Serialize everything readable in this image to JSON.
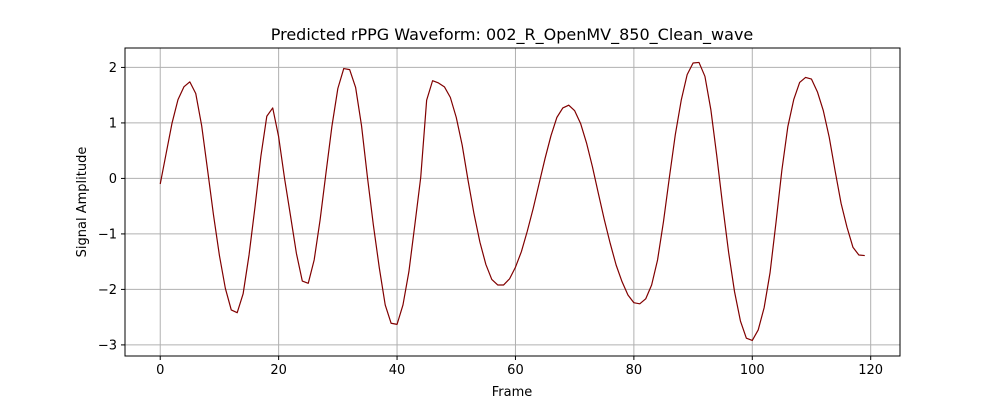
{
  "chart_data": {
    "type": "line",
    "title": "Predicted rPPG Waveform: 002_R_OpenMV_850_Clean_wave",
    "xlabel": "Frame",
    "ylabel": "Signal Amplitude",
    "xlim": [
      -5.95,
      124.95
    ],
    "ylim": [
      -3.2,
      2.35
    ],
    "xticks": [
      0,
      20,
      40,
      60,
      80,
      100,
      120
    ],
    "yticks": [
      -3,
      -2,
      -1,
      0,
      1,
      2
    ],
    "grid": true,
    "line_color": "#800000",
    "series": [
      {
        "values": [
          -0.1,
          0.45,
          1.0,
          1.42,
          1.65,
          1.74,
          1.53,
          0.95,
          0.15,
          -0.66,
          -1.39,
          -1.98,
          -2.37,
          -2.42,
          -2.08,
          -1.38,
          -0.52,
          0.4,
          1.12,
          1.27,
          0.75,
          0.0,
          -0.67,
          -1.35,
          -1.85,
          -1.89,
          -1.47,
          -0.75,
          0.1,
          0.94,
          1.62,
          1.98,
          1.96,
          1.64,
          0.95,
          0.02,
          -0.84,
          -1.61,
          -2.28,
          -2.61,
          -2.63,
          -2.28,
          -1.68,
          -0.84,
          0.02,
          1.41,
          1.76,
          1.72,
          1.65,
          1.46,
          1.1,
          0.6,
          -0.04,
          -0.64,
          -1.15,
          -1.55,
          -1.82,
          -1.92,
          -1.92,
          -1.81,
          -1.6,
          -1.32,
          -0.95,
          -0.54,
          -0.09,
          0.36,
          0.77,
          1.1,
          1.27,
          1.32,
          1.22,
          0.99,
          0.64,
          0.21,
          -0.27,
          -0.74,
          -1.17,
          -1.56,
          -1.86,
          -2.1,
          -2.24,
          -2.26,
          -2.17,
          -1.92,
          -1.47,
          -0.78,
          0.02,
          0.79,
          1.41,
          1.87,
          2.08,
          2.09,
          1.84,
          1.24,
          0.41,
          -0.49,
          -1.33,
          -2.04,
          -2.57,
          -2.88,
          -2.92,
          -2.73,
          -2.33,
          -1.7,
          -0.8,
          0.15,
          0.93,
          1.42,
          1.73,
          1.82,
          1.79,
          1.56,
          1.22,
          0.74,
          0.13,
          -0.45,
          -0.88,
          -1.24,
          -1.38,
          -1.39
        ]
      }
    ]
  }
}
